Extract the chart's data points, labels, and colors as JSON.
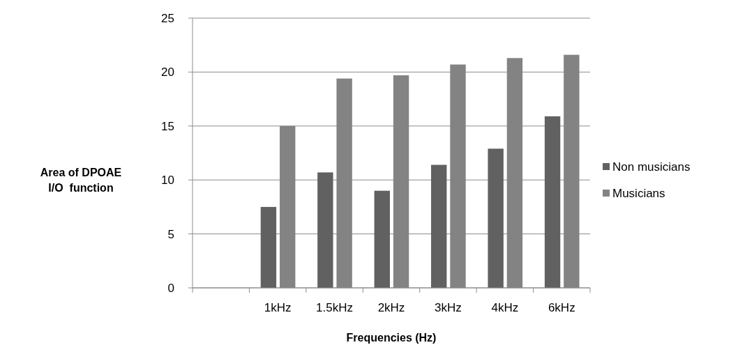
{
  "chart_data": {
    "type": "bar",
    "xlabel": "Frequencies (Hz)",
    "ylabel": "Area of DPOAE\nI/O  function",
    "categories": [
      null,
      "1kHz",
      "1.5kHz",
      "2kHz",
      "3kHz",
      "4kHz",
      "6kHz"
    ],
    "series": [
      {
        "name": "Non musicians",
        "color": "#616161",
        "values": [
          null,
          7.5,
          10.7,
          9.0,
          11.4,
          12.9,
          15.9
        ]
      },
      {
        "name": "Musicians",
        "color": "#838383",
        "values": [
          null,
          15.0,
          19.4,
          19.7,
          20.7,
          21.3,
          21.6
        ]
      }
    ],
    "ylim": [
      0,
      25
    ],
    "yticks": [
      0,
      5,
      10,
      15,
      20,
      25
    ],
    "grid": "y",
    "legend": "right"
  }
}
